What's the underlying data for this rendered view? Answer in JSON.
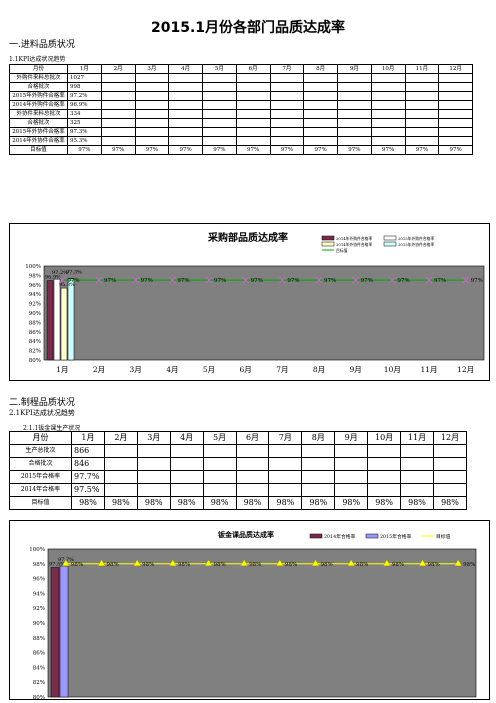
{
  "title": "2015.1月份各部门品质达成率",
  "section1": {
    "heading": "一.进料品质状况",
    "subheading": "1.1KPI达成状况趋势",
    "months": [
      "月份",
      "1月",
      "2月",
      "3月",
      "4月",
      "5月",
      "6月",
      "7月",
      "8月",
      "9月",
      "10月",
      "11月",
      "12月"
    ],
    "rows": [
      {
        "label": "外购件来料总批次",
        "values": [
          "1027",
          "",
          "",
          "",
          "",
          "",
          "",
          "",
          "",
          "",
          "",
          ""
        ]
      },
      {
        "label": "合格批次",
        "values": [
          "998",
          "",
          "",
          "",
          "",
          "",
          "",
          "",
          "",
          "",
          "",
          ""
        ]
      },
      {
        "label": "2015年外购件合格率",
        "values": [
          "97.2%",
          "",
          "",
          "",
          "",
          "",
          "",
          "",
          "",
          "",
          "",
          ""
        ]
      },
      {
        "label": "2014年外购件合格率",
        "values": [
          "96.9%",
          "",
          "",
          "",
          "",
          "",
          "",
          "",
          "",
          "",
          "",
          ""
        ]
      },
      {
        "label": "外协件来料总批次",
        "values": [
          "334",
          "",
          "",
          "",
          "",
          "",
          "",
          "",
          "",
          "",
          "",
          ""
        ]
      },
      {
        "label": "合格批次",
        "values": [
          "325",
          "",
          "",
          "",
          "",
          "",
          "",
          "",
          "",
          "",
          "",
          ""
        ]
      },
      {
        "label": "2015年外协件合格率",
        "values": [
          "97.3%",
          "",
          "",
          "",
          "",
          "",
          "",
          "",
          "",
          "",
          "",
          ""
        ]
      },
      {
        "label": "2014年外协件合格率",
        "values": [
          "95.3%",
          "",
          "",
          "",
          "",
          "",
          "",
          "",
          "",
          "",
          "",
          ""
        ]
      },
      {
        "label": "目标值",
        "values": [
          "97%",
          "97%",
          "97%",
          "97%",
          "97%",
          "97%",
          "97%",
          "97%",
          "97%",
          "97%",
          "97%",
          "97%"
        ]
      }
    ]
  },
  "section2": {
    "heading": "二.制程品质状况",
    "subheading": "2.1KPI达成状况趋势",
    "subsub": "2.1.1钣金课生产状况",
    "months": [
      "月份",
      "1月",
      "2月",
      "3月",
      "4月",
      "5月",
      "6月",
      "7月",
      "8月",
      "9月",
      "10月",
      "11月",
      "12月"
    ],
    "rows": [
      {
        "label": "生产总批次",
        "values": [
          "866",
          "",
          "",
          "",
          "",
          "",
          "",
          "",
          "",
          "",
          "",
          ""
        ]
      },
      {
        "label": "合格批次",
        "values": [
          "846",
          "",
          "",
          "",
          "",
          "",
          "",
          "",
          "",
          "",
          "",
          ""
        ]
      },
      {
        "label": "2015年合格率",
        "values": [
          "97.7%",
          "",
          "",
          "",
          "",
          "",
          "",
          "",
          "",
          "",
          "",
          ""
        ]
      },
      {
        "label": "2014年合格率",
        "values": [
          "97.5%",
          "",
          "",
          "",
          "",
          "",
          "",
          "",
          "",
          "",
          "",
          ""
        ]
      },
      {
        "label": "目标值",
        "values": [
          "98%",
          "98%",
          "98%",
          "98%",
          "98%",
          "98%",
          "98%",
          "98%",
          "98%",
          "98%",
          "98%",
          "98%"
        ]
      }
    ]
  },
  "chart_data": [
    {
      "type": "bar",
      "title": "采购部品质达成率",
      "categories": [
        "1月",
        "2月",
        "3月",
        "4月",
        "5月",
        "6月",
        "7月",
        "8月",
        "9月",
        "10月",
        "11月",
        "12月"
      ],
      "ylim": [
        80,
        100
      ],
      "yticks": [
        "100%",
        "98%",
        "96%",
        "94%",
        "92%",
        "90%",
        "88%",
        "86%",
        "84%",
        "82%",
        "80%"
      ],
      "series": [
        {
          "name": "2014年外购件合格率",
          "values": [
            96.9,
            null,
            null,
            null,
            null,
            null,
            null,
            null,
            null,
            null,
            null,
            null
          ],
          "color": "#7b2c4a"
        },
        {
          "name": "2015年外购件合格率",
          "values": [
            97.2,
            null,
            null,
            null,
            null,
            null,
            null,
            null,
            null,
            null,
            null,
            null
          ],
          "color": "#ffffff"
        },
        {
          "name": "2014年外协件合格率",
          "values": [
            95.3,
            null,
            null,
            null,
            null,
            null,
            null,
            null,
            null,
            null,
            null,
            null
          ],
          "color": "#ffffcc"
        },
        {
          "name": "2015年外协件合格率",
          "values": [
            97.3,
            null,
            null,
            null,
            null,
            null,
            null,
            null,
            null,
            null,
            null,
            null
          ],
          "color": "#ccffff"
        },
        {
          "name": "目标值",
          "type": "line",
          "values": [
            97,
            97,
            97,
            97,
            97,
            97,
            97,
            97,
            97,
            97,
            97,
            97
          ],
          "color": "#00aa00",
          "marker": "x"
        }
      ],
      "data_labels_first": [
        "96.9%",
        "97.2%",
        "95.3%",
        "97.3%"
      ],
      "target_labels": [
        "97%",
        "97%",
        "97%",
        "97%",
        "97%",
        "97%",
        "97%",
        "97%",
        "97%",
        "97%",
        "97%",
        "97%"
      ],
      "background": "#808080",
      "grid": false
    },
    {
      "type": "bar",
      "title": "钣金课品质达成率",
      "categories": [
        "1月",
        "2月",
        "3月",
        "4月",
        "5月",
        "6月",
        "7月",
        "8月",
        "9月",
        "10月",
        "11月",
        "12月"
      ],
      "ylim": [
        80,
        100
      ],
      "yticks": [
        "100%",
        "98%",
        "96%",
        "94%",
        "92%",
        "90%",
        "88%",
        "86%",
        "84%",
        "82%",
        "80%"
      ],
      "series": [
        {
          "name": "2014年合格率",
          "values": [
            97.5,
            null,
            null,
            null,
            null,
            null,
            null,
            null,
            null,
            null,
            null,
            null
          ],
          "color": "#7b2c4a"
        },
        {
          "name": "2015年合格率",
          "values": [
            97.7,
            null,
            null,
            null,
            null,
            null,
            null,
            null,
            null,
            null,
            null,
            null
          ],
          "color": "#9999ff"
        },
        {
          "name": "目标值",
          "type": "line",
          "values": [
            98,
            98,
            98,
            98,
            98,
            98,
            98,
            98,
            98,
            98,
            98,
            98
          ],
          "color": "#ffff00",
          "marker": "triangle"
        }
      ],
      "data_labels_first": [
        "97.5%",
        "97.7%"
      ],
      "target_labels": [
        "98%",
        "98%",
        "98%",
        "98%",
        "98%",
        "98%",
        "98%",
        "98%",
        "98%",
        "98%",
        "98%",
        "98%"
      ],
      "background": "#808080",
      "grid": false
    }
  ]
}
